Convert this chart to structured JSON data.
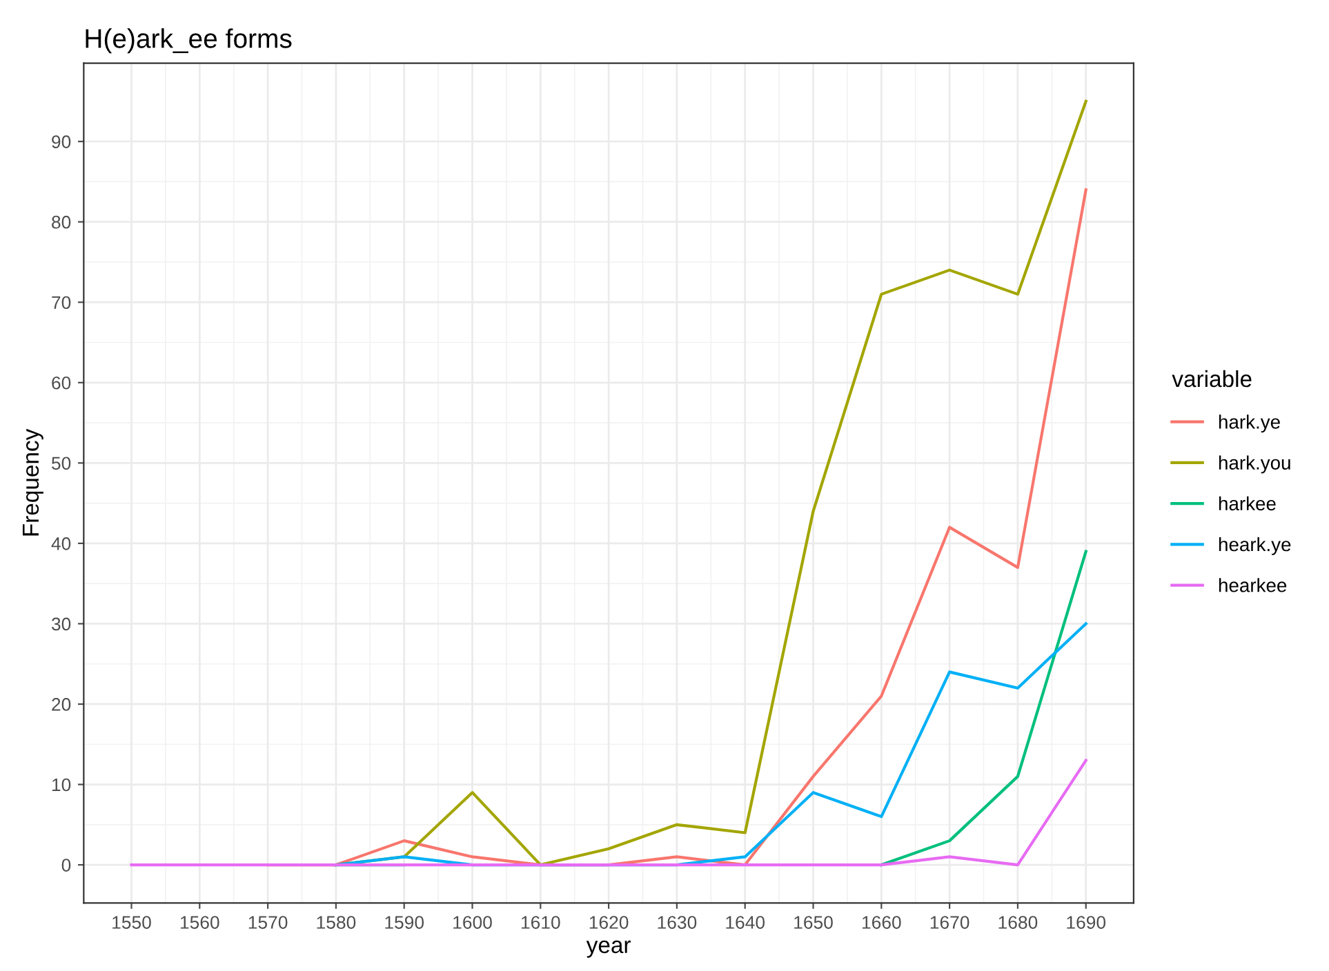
{
  "chart_data": {
    "type": "line",
    "title": "H(e)ark_ee forms",
    "xlabel": "year",
    "ylabel": "Frequency",
    "legend_title": "variable",
    "x": [
      1550,
      1560,
      1570,
      1580,
      1590,
      1600,
      1610,
      1620,
      1630,
      1640,
      1650,
      1660,
      1670,
      1680,
      1690
    ],
    "series": [
      {
        "name": "hark.ye",
        "color": "#f8766d",
        "values": [
          null,
          null,
          0,
          0,
          3,
          1,
          0,
          0,
          1,
          0,
          11,
          21,
          42,
          37,
          84
        ]
      },
      {
        "name": "hark.you",
        "color": "#a3a500",
        "values": [
          null,
          null,
          null,
          0,
          1,
          9,
          0,
          2,
          5,
          4,
          44,
          71,
          74,
          71,
          95
        ]
      },
      {
        "name": "harkee",
        "color": "#00bf7d",
        "values": [
          null,
          null,
          null,
          0,
          0,
          null,
          null,
          null,
          null,
          null,
          null,
          0,
          3,
          11,
          39
        ]
      },
      {
        "name": "heark.ye",
        "color": "#00b0f6",
        "values": [
          null,
          null,
          null,
          0,
          1,
          0,
          0,
          0,
          0,
          1,
          9,
          6,
          24,
          22,
          30
        ]
      },
      {
        "name": "hearkee",
        "color": "#e76bf3",
        "values": [
          0,
          0,
          0,
          0,
          0,
          0,
          0,
          0,
          0,
          0,
          0,
          0,
          1,
          0,
          13
        ]
      }
    ],
    "xlim": [
      1543,
      1697
    ],
    "ylim": [
      -4.75,
      99.75
    ],
    "xticks": [
      1550,
      1560,
      1570,
      1580,
      1590,
      1600,
      1610,
      1620,
      1630,
      1640,
      1650,
      1660,
      1670,
      1680,
      1690
    ],
    "yticks": [
      0,
      10,
      20,
      30,
      40,
      50,
      60,
      70,
      80,
      90
    ],
    "grid": true,
    "legend": "right",
    "marker": "none",
    "line_style": "solid"
  }
}
